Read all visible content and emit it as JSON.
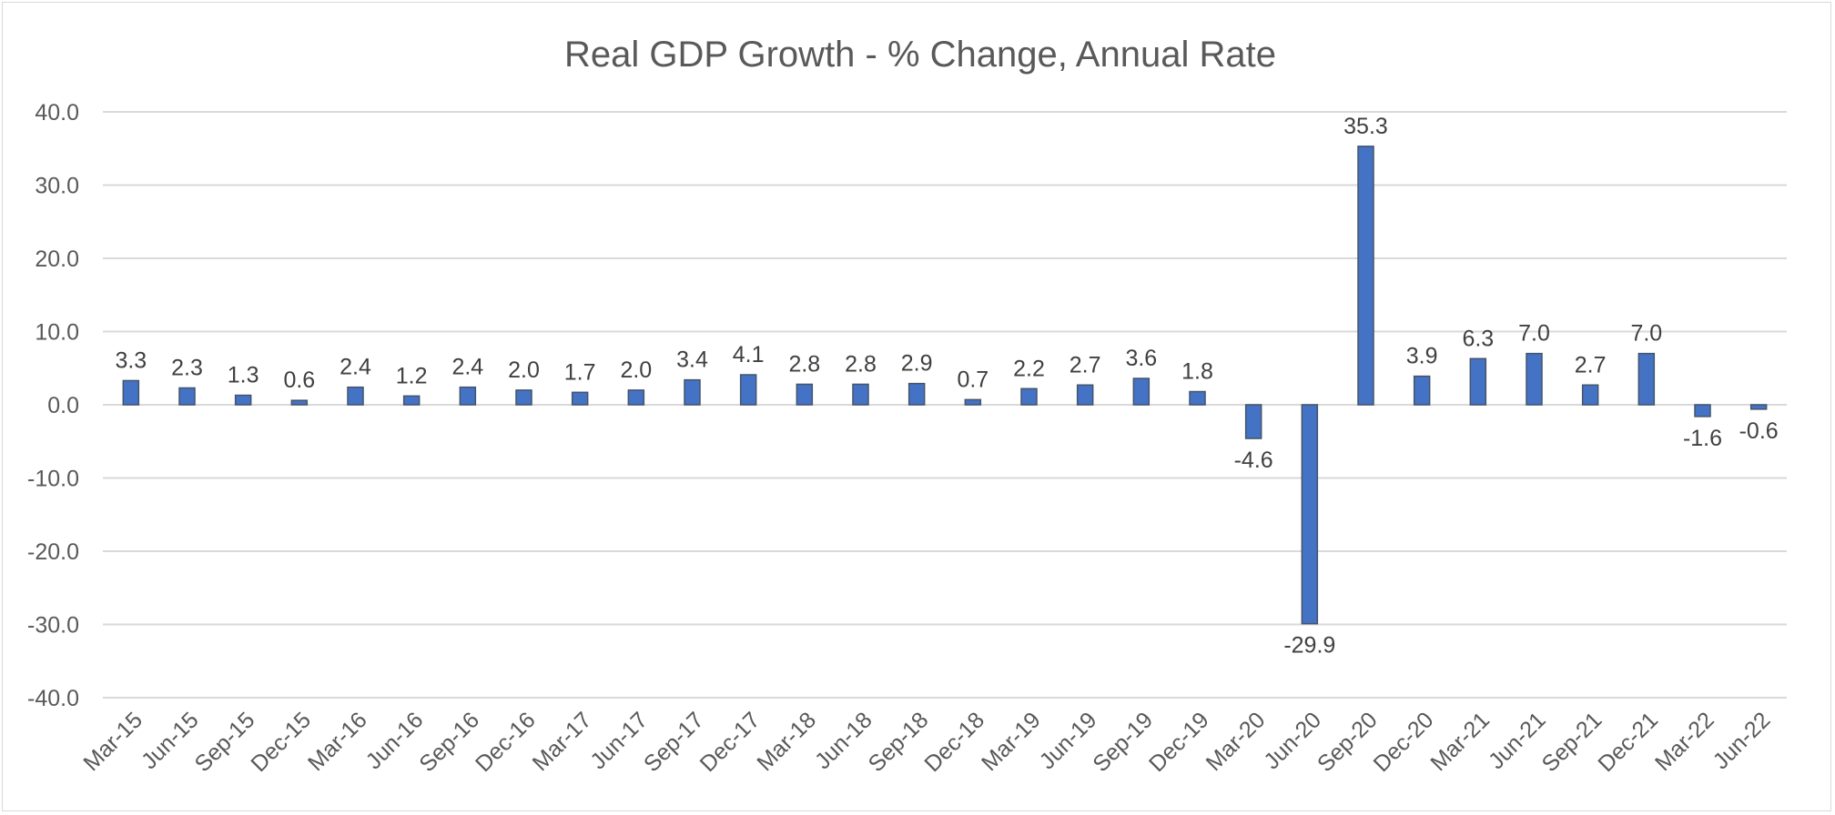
{
  "chart_data": {
    "type": "bar",
    "title": "Real GDP Growth - % Change, Annual Rate",
    "xlabel": "",
    "ylabel": "",
    "ylim": [
      -40,
      40
    ],
    "yticks": [
      "40.0",
      "30.0",
      "20.0",
      "10.0",
      "0.0",
      "-10.0",
      "-20.0",
      "-30.0",
      "-40.0"
    ],
    "grid": true,
    "bar_color": "#4472c4",
    "categories": [
      "Mar-15",
      "Jun-15",
      "Sep-15",
      "Dec-15",
      "Mar-16",
      "Jun-16",
      "Sep-16",
      "Dec-16",
      "Mar-17",
      "Jun-17",
      "Sep-17",
      "Dec-17",
      "Mar-18",
      "Jun-18",
      "Sep-18",
      "Dec-18",
      "Mar-19",
      "Jun-19",
      "Sep-19",
      "Dec-19",
      "Mar-20",
      "Jun-20",
      "Sep-20",
      "Dec-20",
      "Mar-21",
      "Jun-21",
      "Sep-21",
      "Dec-21",
      "Mar-22",
      "Jun-22"
    ],
    "values": [
      3.3,
      2.3,
      1.3,
      0.6,
      2.4,
      1.2,
      2.4,
      2.0,
      1.7,
      2.0,
      3.4,
      4.1,
      2.8,
      2.8,
      2.9,
      0.7,
      2.2,
      2.7,
      3.6,
      1.8,
      -4.6,
      -29.9,
      35.3,
      3.9,
      6.3,
      7.0,
      2.7,
      7.0,
      -1.6,
      -0.6
    ],
    "data_labels": [
      "3.3",
      "2.3",
      "1.3",
      "0.6",
      "2.4",
      "1.2",
      "2.4",
      "2.0",
      "1.7",
      "2.0",
      "3.4",
      "4.1",
      "2.8",
      "2.8",
      "2.9",
      "0.7",
      "2.2",
      "2.7",
      "3.6",
      "1.8",
      "-4.6",
      "-29.9",
      "35.3",
      "3.9",
      "6.3",
      "7.0",
      "2.7",
      "7.0",
      "-1.6",
      "-0.6"
    ]
  }
}
